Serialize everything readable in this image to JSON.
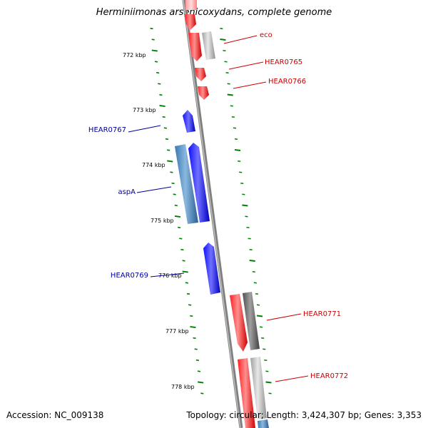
{
  "title": "Herminiimonas arsenicoxydans, complete genome",
  "accession": "Accession: NC_009138",
  "topology": "Topology: circular; Length: 3,424,307 bp; Genes: 3,353",
  "colors": {
    "forward_strand": "#ff0000",
    "reverse_strand": "#0000ee",
    "forward_label": "#cc0000",
    "reverse_label": "#000099",
    "tick": "#008000",
    "backbone": "#808080"
  },
  "ticks": [
    "772 kbp",
    "773 kbp",
    "774 kbp",
    "775 kbp",
    "776 kbp",
    "777 kbp",
    "778 kbp"
  ],
  "genes": [
    {
      "label": "eco",
      "strand": "forward"
    },
    {
      "label": "HEAR0765",
      "strand": "forward"
    },
    {
      "label": "HEAR0766",
      "strand": "forward"
    },
    {
      "label": "HEAR0767",
      "strand": "reverse"
    },
    {
      "label": "aspA",
      "strand": "reverse"
    },
    {
      "label": "HEAR0769",
      "strand": "reverse"
    },
    {
      "label": "HEAR0771",
      "strand": "forward"
    },
    {
      "label": "HEAR0772",
      "strand": "forward"
    }
  ]
}
